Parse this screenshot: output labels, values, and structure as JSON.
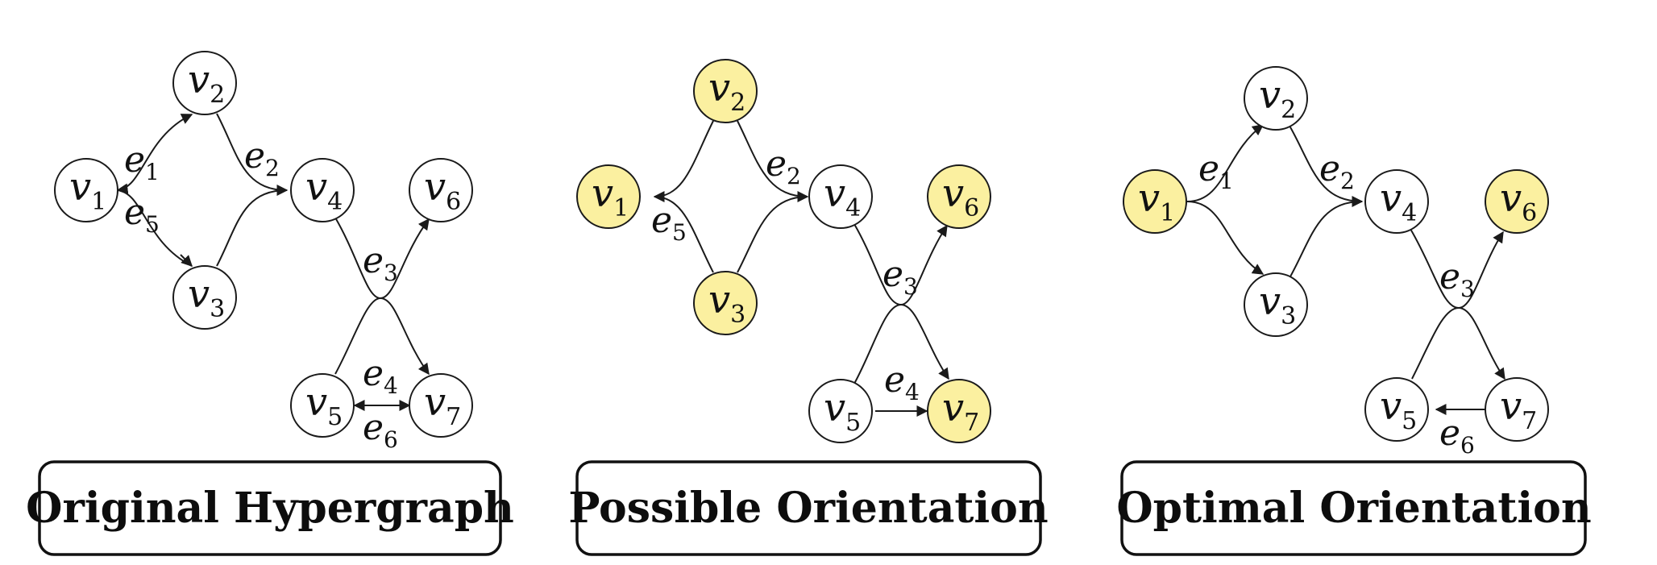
{
  "colors": {
    "highlight": "#fbf0a0",
    "plain": "#ffffff",
    "ink": "#1a1a1a"
  },
  "panels": [
    {
      "id": "original",
      "title": "Original Hypergraph",
      "highlighted": [],
      "vertex_labels": {
        "v1": [
          "v",
          "1"
        ],
        "v2": [
          "v",
          "2"
        ],
        "v3": [
          "v",
          "3"
        ],
        "v4": [
          "v",
          "4"
        ],
        "v5": [
          "v",
          "5"
        ],
        "v6": [
          "v",
          "6"
        ],
        "v7": [
          "v",
          "7"
        ]
      },
      "edge_labels": {
        "e1": [
          "e",
          "1"
        ],
        "e5": [
          "e",
          "5"
        ],
        "e2": [
          "e",
          "2"
        ],
        "e3": [
          "e",
          "3"
        ],
        "e4": [
          "e",
          "4"
        ],
        "e6": [
          "e",
          "6"
        ]
      }
    },
    {
      "id": "possible",
      "title": "Possible Orientation",
      "highlighted": [
        "v1",
        "v2",
        "v3",
        "v6",
        "v7"
      ],
      "vertex_labels": {
        "v1": [
          "v",
          "1"
        ],
        "v2": [
          "v",
          "2"
        ],
        "v3": [
          "v",
          "3"
        ],
        "v4": [
          "v",
          "4"
        ],
        "v5": [
          "v",
          "5"
        ],
        "v6": [
          "v",
          "6"
        ],
        "v7": [
          "v",
          "7"
        ]
      },
      "edge_labels": {
        "e5": [
          "e",
          "5"
        ],
        "e2": [
          "e",
          "2"
        ],
        "e3": [
          "e",
          "3"
        ],
        "e4": [
          "e",
          "4"
        ]
      }
    },
    {
      "id": "optimal",
      "title": "Optimal Orientation",
      "highlighted": [
        "v1",
        "v6"
      ],
      "vertex_labels": {
        "v1": [
          "v",
          "1"
        ],
        "v2": [
          "v",
          "2"
        ],
        "v3": [
          "v",
          "3"
        ],
        "v4": [
          "v",
          "4"
        ],
        "v5": [
          "v",
          "5"
        ],
        "v6": [
          "v",
          "6"
        ],
        "v7": [
          "v",
          "7"
        ]
      },
      "edge_labels": {
        "e1": [
          "e",
          "1"
        ],
        "e2": [
          "e",
          "2"
        ],
        "e3": [
          "e",
          "3"
        ],
        "e6": [
          "e",
          "6"
        ]
      }
    }
  ]
}
